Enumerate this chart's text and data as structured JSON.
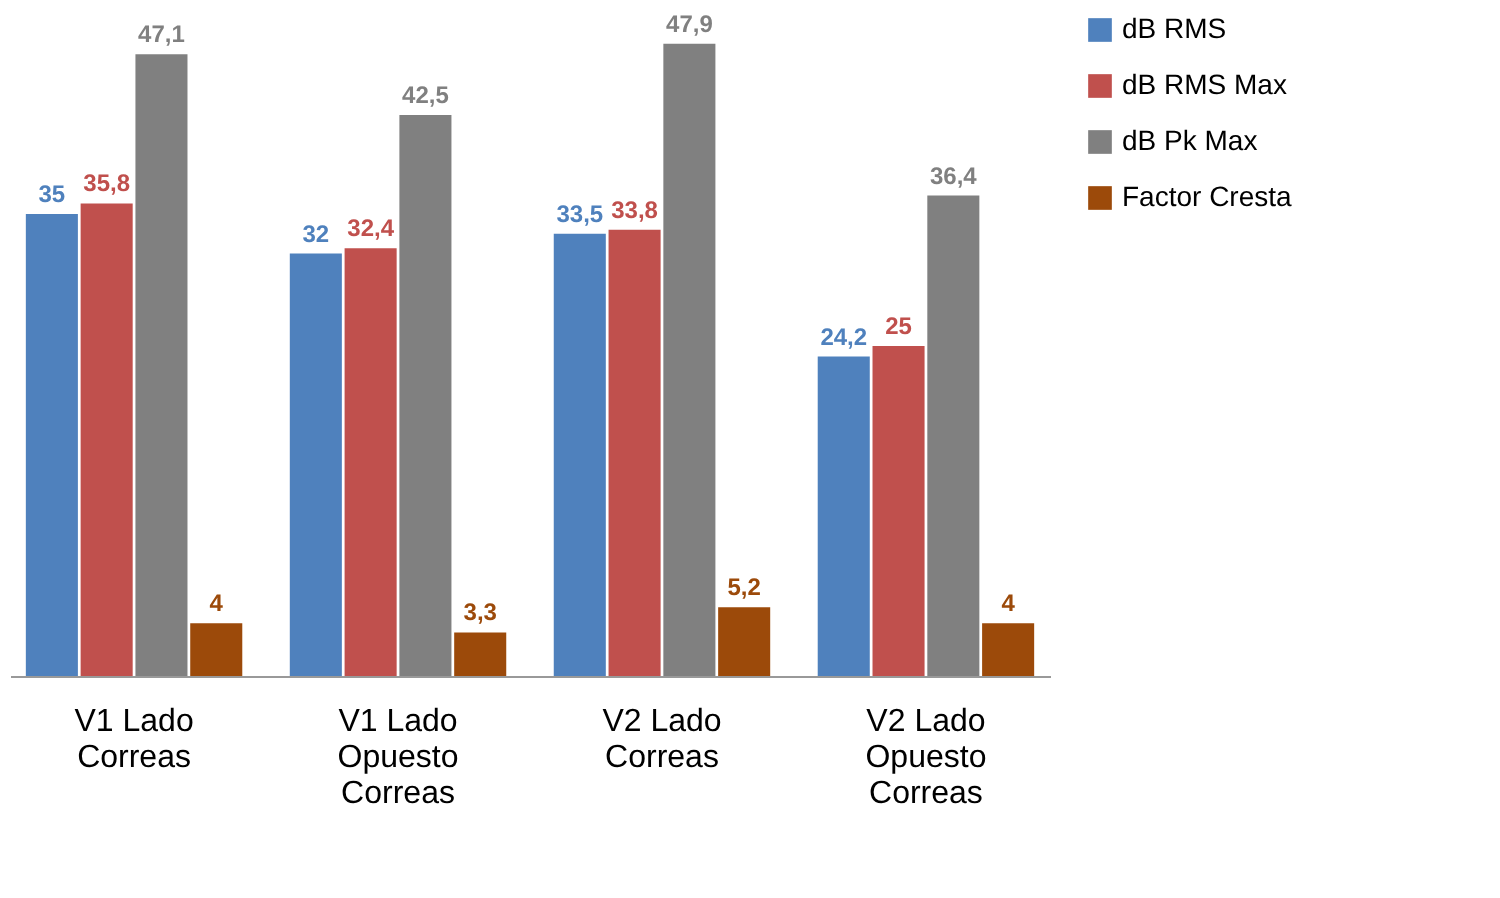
{
  "chart_data": {
    "type": "bar",
    "categories": [
      "V1 Lado Correas",
      "V1 Lado Opuesto Correas",
      "V2 Lado Correas",
      "V2 Lado Opuesto Correas"
    ],
    "series": [
      {
        "name": "dB RMS",
        "color": "#4f81bd",
        "values": [
          35,
          32,
          33.5,
          24.2
        ],
        "value_labels": [
          "35",
          "32",
          "33,5",
          "24,2"
        ]
      },
      {
        "name": "dB RMS Max",
        "color": "#c0504d",
        "values": [
          35.8,
          32.4,
          33.8,
          25
        ],
        "value_labels": [
          "35,8",
          "32,4",
          "33,8",
          "25"
        ]
      },
      {
        "name": "dB Pk Max",
        "color": "#808080",
        "values": [
          47.1,
          42.5,
          47.9,
          36.4
        ],
        "value_labels": [
          "47,1",
          "42,5",
          "47,9",
          "36,4"
        ]
      },
      {
        "name": "Factor Cresta",
        "color": "#9c4a0a",
        "values": [
          4,
          3.3,
          5.2,
          4
        ],
        "value_labels": [
          "4",
          "3,3",
          "5,2",
          "4"
        ]
      }
    ],
    "legend": "right",
    "grid": false
  }
}
